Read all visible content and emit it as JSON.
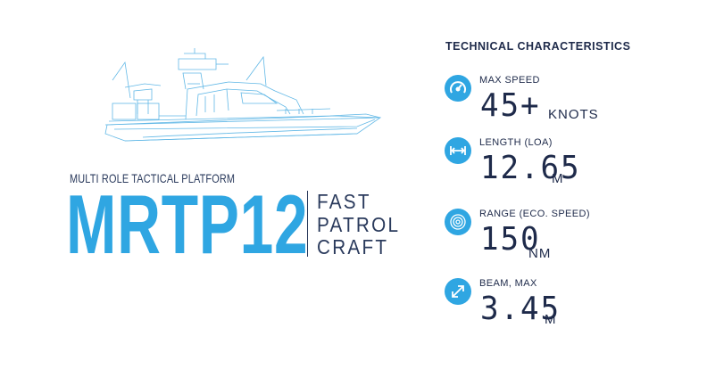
{
  "icons": {
    "speed": "speedometer-icon",
    "length": "horizontal-arrows-icon",
    "range": "radar-icon",
    "beam": "diagonal-arrows-icon",
    "boat": "patrol-boat-illustration"
  },
  "colors": {
    "accent": "#2fa6e2",
    "text": "#1e2a4a"
  },
  "left": {
    "subtitle": "MULTI ROLE TACTICAL PLATFORM",
    "model": "MRTP12",
    "role": [
      "FAST",
      "PATROL",
      "CRAFT"
    ]
  },
  "specs": {
    "title": "TECHNICAL CHARACTERISTICS",
    "items": [
      {
        "label": "MAX SPEED",
        "value": "45+",
        "unit": "KNOTS"
      },
      {
        "label": "LENGTH (LOA)",
        "value": "12.65",
        "unit": "M"
      },
      {
        "label": "RANGE (ECO. SPEED)",
        "value": "150",
        "unit": "NM"
      },
      {
        "label": "BEAM, MAX",
        "value": "3.45",
        "unit": "M"
      }
    ]
  }
}
